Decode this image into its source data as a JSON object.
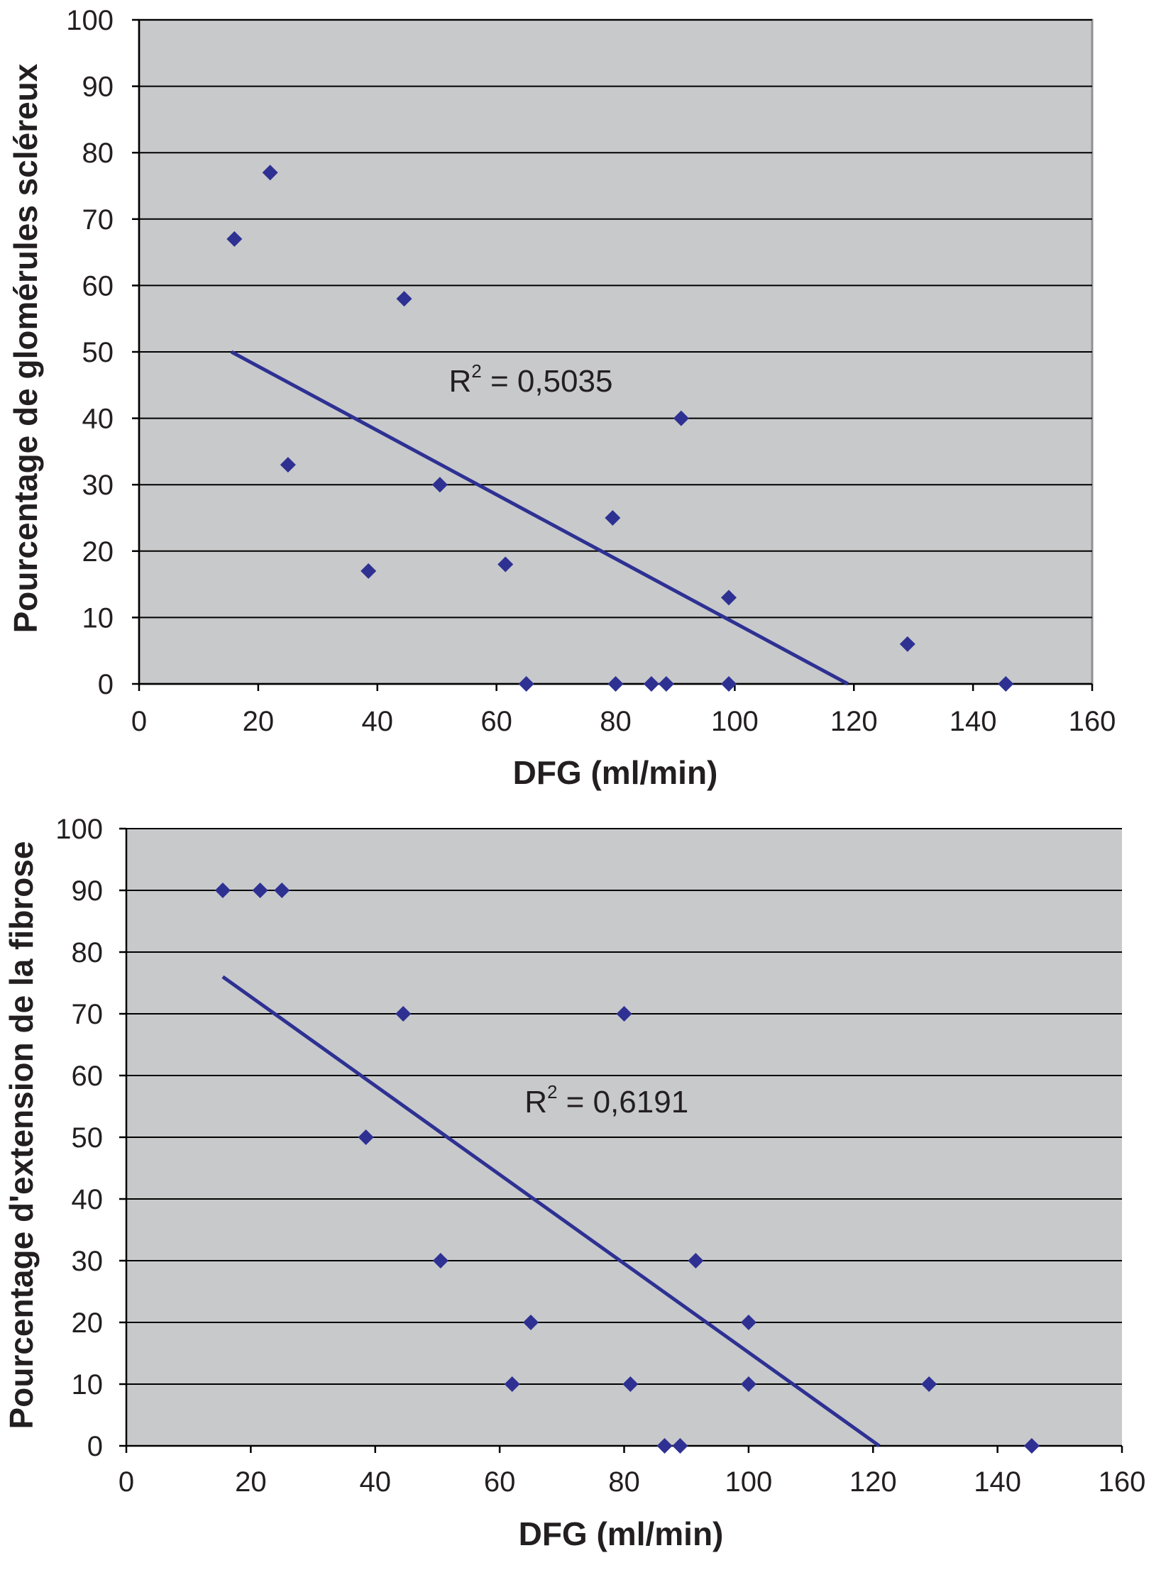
{
  "chart_data": [
    {
      "type": "scatter",
      "xlabel": "DFG (ml/min)",
      "ylabel": "Pourcentage de glomérules scléreux",
      "xlim": [
        0,
        160
      ],
      "ylim": [
        0,
        100
      ],
      "xticks": [
        "0",
        "20",
        "40",
        "60",
        "80",
        "100",
        "120",
        "140",
        "160"
      ],
      "yticks": [
        "0",
        "10",
        "20",
        "30",
        "40",
        "50",
        "60",
        "70",
        "80",
        "90",
        "100"
      ],
      "grid": "horizontal",
      "background": "#c8c9cb",
      "marker_color": "#2e3192",
      "line_color": "#2e3192",
      "points": [
        {
          "x": 16,
          "y": 67
        },
        {
          "x": 22,
          "y": 77
        },
        {
          "x": 25,
          "y": 33
        },
        {
          "x": 38.5,
          "y": 17
        },
        {
          "x": 44.5,
          "y": 58
        },
        {
          "x": 50.5,
          "y": 30
        },
        {
          "x": 61.5,
          "y": 18
        },
        {
          "x": 65,
          "y": 0
        },
        {
          "x": 79.5,
          "y": 25
        },
        {
          "x": 80,
          "y": 0
        },
        {
          "x": 86,
          "y": 0
        },
        {
          "x": 88.5,
          "y": 0
        },
        {
          "x": 91,
          "y": 40
        },
        {
          "x": 99,
          "y": 13
        },
        {
          "x": 99,
          "y": 0
        },
        {
          "x": 129,
          "y": 6
        },
        {
          "x": 145.5,
          "y": 0
        }
      ],
      "trendline": {
        "x1": 15.5,
        "y1": 50,
        "x2": 119,
        "y2": 0
      },
      "annotation": {
        "base": "R",
        "sup": "2",
        "text": " = 0,5035",
        "x": 52,
        "y": 44
      }
    },
    {
      "type": "scatter",
      "xlabel": "DFG (ml/min)",
      "ylabel": "Pourcentage d'extension de la fibrose",
      "xlim": [
        0,
        160
      ],
      "ylim": [
        0,
        100
      ],
      "xticks": [
        "0",
        "20",
        "40",
        "60",
        "80",
        "100",
        "120",
        "140",
        "160"
      ],
      "yticks": [
        "0",
        "10",
        "20",
        "30",
        "40",
        "50",
        "60",
        "70",
        "80",
        "90",
        "100"
      ],
      "grid": "horizontal",
      "background": "#c8c9cb",
      "marker_color": "#2e3192",
      "line_color": "#2e3192",
      "points": [
        {
          "x": 15.5,
          "y": 90
        },
        {
          "x": 21.5,
          "y": 90
        },
        {
          "x": 25,
          "y": 90
        },
        {
          "x": 38.5,
          "y": 50
        },
        {
          "x": 44.5,
          "y": 70
        },
        {
          "x": 50.5,
          "y": 30
        },
        {
          "x": 62,
          "y": 10
        },
        {
          "x": 65,
          "y": 20
        },
        {
          "x": 80,
          "y": 70
        },
        {
          "x": 81,
          "y": 10
        },
        {
          "x": 86.5,
          "y": 0
        },
        {
          "x": 89,
          "y": 0
        },
        {
          "x": 91.5,
          "y": 30
        },
        {
          "x": 100,
          "y": 20
        },
        {
          "x": 100,
          "y": 10
        },
        {
          "x": 129,
          "y": 10
        },
        {
          "x": 145.5,
          "y": 0
        }
      ],
      "trendline": {
        "x1": 15.5,
        "y1": 76,
        "x2": 121,
        "y2": 0
      },
      "annotation": {
        "base": "R",
        "sup": "2",
        "text": " = 0,6191",
        "x": 64,
        "y": 54
      }
    }
  ]
}
